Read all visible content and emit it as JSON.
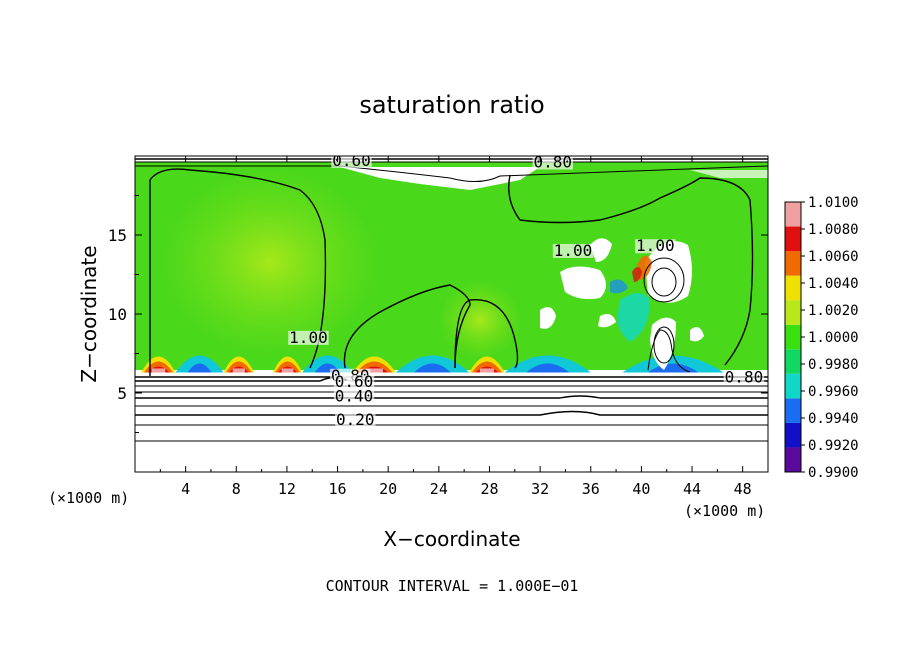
{
  "chart_data": {
    "type": "heatmap",
    "title": "saturation ratio",
    "xlabel": "X−coordinate",
    "ylabel": "Z−coordinate",
    "x_units": "(×1000 m)",
    "x_units_right": "(×1000 m)",
    "footer": "CONTOUR INTERVAL = 1.000E−01",
    "xlim": [
      0,
      50
    ],
    "ylim": [
      0,
      20
    ],
    "x_ticks": [
      4,
      8,
      12,
      16,
      20,
      24,
      28,
      32,
      36,
      40,
      44,
      48
    ],
    "y_ticks": [
      5,
      10,
      15
    ],
    "colorbar": {
      "levels": [
        "0.9900",
        "0.9920",
        "0.9940",
        "0.9960",
        "0.9980",
        "1.0000",
        "1.0020",
        "1.0040",
        "1.0060",
        "1.0080",
        "1.0100"
      ],
      "colors": [
        "#5a0a9a",
        "#1010c8",
        "#1a6cf0",
        "#10d8c8",
        "#10d860",
        "#38e010",
        "#b8e818",
        "#f0e000",
        "#f06a00",
        "#e01010",
        "#f0a0a0"
      ]
    },
    "contour_labels": [
      {
        "text": "0.60",
        "x": 17.1,
        "z": 19.5
      },
      {
        "text": "0.80",
        "x": 33.0,
        "z": 19.4
      },
      {
        "text": "1.00",
        "x": 13.7,
        "z": 8.3
      },
      {
        "text": "1.00",
        "x": 34.6,
        "z": 13.8
      },
      {
        "text": "1.00",
        "x": 41.1,
        "z": 14.1
      },
      {
        "text": "0.80",
        "x": 17.0,
        "z": 5.9
      },
      {
        "text": "0.60",
        "x": 17.3,
        "z": 5.5
      },
      {
        "text": "0.40",
        "x": 17.3,
        "z": 4.6
      },
      {
        "text": "0.20",
        "x": 17.4,
        "z": 3.1
      },
      {
        "text": "0.80",
        "x": 48.1,
        "z": 5.8
      }
    ]
  }
}
